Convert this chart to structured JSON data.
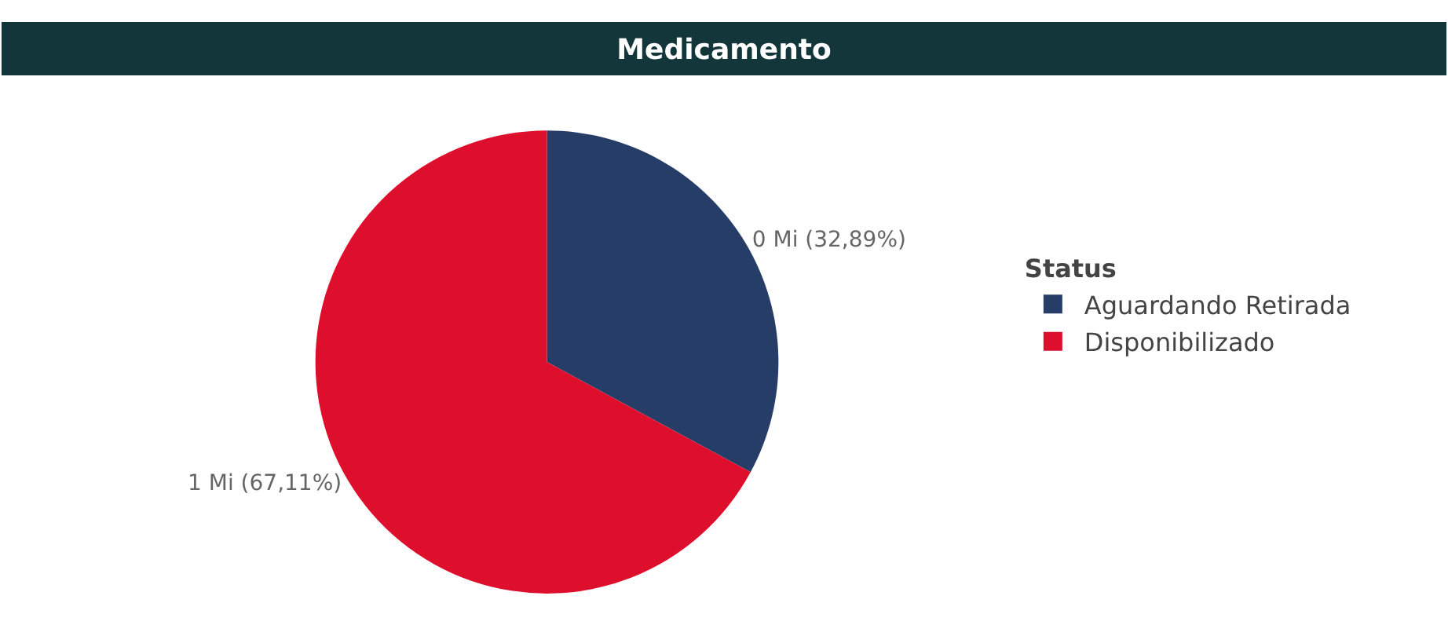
{
  "chart_data": {
    "type": "pie",
    "title": "Medicamento",
    "legend_title": "Status",
    "categories": [
      "Aguardando Retirada",
      "Disponibilizado"
    ],
    "values": [
      32.89,
      67.11
    ],
    "colors": [
      "#253d67",
      "#de0f2c"
    ],
    "value_labels": [
      "0 Mi (32,89%)",
      "1 Mi (67,11%)"
    ],
    "legend": "right"
  }
}
